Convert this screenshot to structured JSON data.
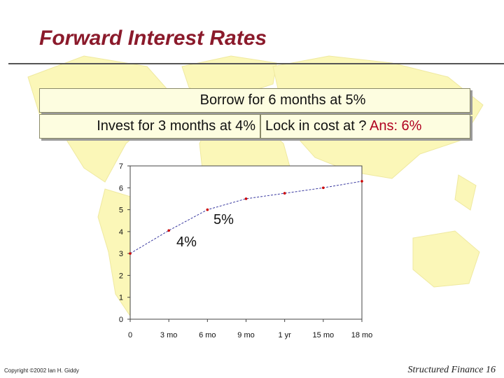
{
  "title": "Forward Interest Rates",
  "box_borrow": "Borrow for 6 months at 5%",
  "box_invest": "Invest for 3 months at 4%",
  "box_lock": "Lock in cost at ?",
  "box_answer": "Ans: 6%",
  "annotation_4": "4%",
  "annotation_5": "5%",
  "footer_copyright": "Copyright ©2002 Ian H. Giddy",
  "footer_page": "Structured Finance 16",
  "colors": {
    "title": "#8b1a2b",
    "answer": "#b00020",
    "line": "#3a3aa0",
    "marker": "#cc0000",
    "map": "#fbf7b8"
  },
  "chart_data": {
    "type": "line",
    "categories": [
      "0",
      "3 mo",
      "6 mo",
      "9 mo",
      "1 yr",
      "15 mo",
      "18 mo"
    ],
    "x": [
      0,
      3,
      6,
      9,
      12,
      15,
      18
    ],
    "series": [
      {
        "values": [
          3.0,
          4.05,
          5.0,
          5.5,
          5.75,
          6.0,
          6.3
        ]
      }
    ],
    "ylim": [
      0,
      7
    ],
    "yticks": [
      "0",
      "1",
      "2",
      "3",
      "4",
      "5",
      "6",
      "7"
    ],
    "grid": false,
    "annotations": [
      "4%",
      "5%"
    ]
  }
}
